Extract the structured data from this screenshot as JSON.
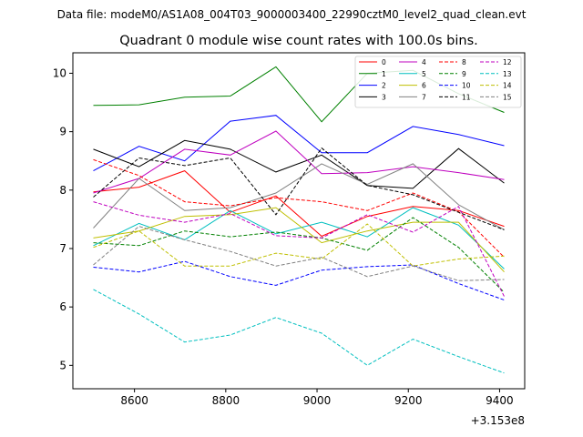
{
  "header_text": "Data file: modeM0/AS1A08_004T03_9000003400_22990cztM0_level2_quad_clean.evt",
  "chart_data": {
    "type": "line",
    "title": "Quadrant 0 module wise count rates with 100.0s bins.",
    "xlabel": "",
    "ylabel": "",
    "x_offset_label": "+3.153e8",
    "x": [
      8510,
      8610,
      8710,
      8810,
      8910,
      9010,
      9110,
      9210,
      9310,
      9410
    ],
    "xlim": [
      8465,
      9455
    ],
    "ylim": [
      4.6,
      10.35
    ],
    "x_ticks": [
      8600,
      8800,
      9000,
      9200,
      9400
    ],
    "y_ticks": [
      5,
      6,
      7,
      8,
      9,
      10
    ],
    "grid": false,
    "legend_placement": "top-right",
    "series": [
      {
        "name": "0",
        "color": "#ff0000",
        "dash": "solid",
        "values": [
          7.97,
          8.05,
          8.33,
          7.62,
          7.9,
          7.21,
          7.55,
          7.72,
          7.65,
          7.38
        ]
      },
      {
        "name": "1",
        "color": "#008000",
        "dash": "solid",
        "values": [
          9.45,
          9.46,
          9.59,
          9.61,
          10.11,
          9.17,
          10.0,
          10.05,
          9.65,
          9.33
        ]
      },
      {
        "name": "2",
        "color": "#0000ff",
        "dash": "solid",
        "values": [
          8.33,
          8.75,
          8.5,
          9.18,
          9.28,
          8.64,
          8.64,
          9.09,
          8.95,
          8.76
        ]
      },
      {
        "name": "3",
        "color": "#000000",
        "dash": "solid",
        "values": [
          8.7,
          8.4,
          8.85,
          8.7,
          8.31,
          8.6,
          8.08,
          8.03,
          8.71,
          8.12
        ]
      },
      {
        "name": "4",
        "color": "#bf00bf",
        "dash": "solid",
        "values": [
          7.95,
          8.2,
          8.7,
          8.6,
          9.01,
          8.28,
          8.3,
          8.4,
          8.3,
          8.18
        ]
      },
      {
        "name": "5",
        "color": "#00bfbf",
        "dash": "solid",
        "values": [
          7.05,
          7.43,
          7.15,
          7.65,
          7.25,
          7.45,
          7.2,
          7.7,
          7.4,
          6.65
        ]
      },
      {
        "name": "6",
        "color": "#bfbf00",
        "dash": "solid",
        "values": [
          7.18,
          7.3,
          7.55,
          7.58,
          7.7,
          7.1,
          7.3,
          7.45,
          7.45,
          6.6
        ]
      },
      {
        "name": "7",
        "color": "#808080",
        "dash": "solid",
        "values": [
          7.35,
          8.2,
          7.65,
          7.7,
          7.95,
          8.45,
          8.1,
          8.45,
          7.75,
          7.32
        ]
      },
      {
        "name": "8",
        "color": "#ff0000",
        "dash": "dashed",
        "values": [
          8.52,
          8.25,
          7.8,
          7.73,
          7.87,
          7.8,
          7.65,
          7.95,
          7.63,
          6.85
        ]
      },
      {
        "name": "9",
        "color": "#008000",
        "dash": "dashed",
        "values": [
          7.1,
          7.05,
          7.3,
          7.2,
          7.28,
          7.18,
          6.97,
          7.53,
          7.02,
          6.25
        ]
      },
      {
        "name": "10",
        "color": "#0000ff",
        "dash": "dashed",
        "values": [
          6.68,
          6.6,
          6.78,
          6.52,
          6.37,
          6.63,
          6.69,
          6.72,
          6.4,
          6.12
        ]
      },
      {
        "name": "11",
        "color": "#000000",
        "dash": "dashed",
        "values": [
          7.88,
          8.55,
          8.42,
          8.55,
          7.58,
          8.72,
          8.08,
          7.92,
          7.62,
          7.32
        ]
      },
      {
        "name": "12",
        "color": "#bf00bf",
        "dash": "dashed",
        "values": [
          7.8,
          7.57,
          7.45,
          7.6,
          7.22,
          7.18,
          7.58,
          7.28,
          7.72,
          6.18
        ]
      },
      {
        "name": "13",
        "color": "#00bfbf",
        "dash": "dashed",
        "values": [
          6.3,
          5.88,
          5.4,
          5.52,
          5.82,
          5.55,
          5.0,
          5.45,
          5.15,
          4.87
        ]
      },
      {
        "name": "14",
        "color": "#bfbf00",
        "dash": "dashed",
        "values": [
          7.02,
          7.3,
          6.7,
          6.7,
          6.92,
          6.82,
          7.42,
          6.7,
          6.82,
          6.87
        ]
      },
      {
        "name": "15",
        "color": "#808080",
        "dash": "dashed",
        "values": [
          6.72,
          7.38,
          7.15,
          6.95,
          6.7,
          6.85,
          6.52,
          6.7,
          6.45,
          6.47
        ]
      }
    ]
  }
}
